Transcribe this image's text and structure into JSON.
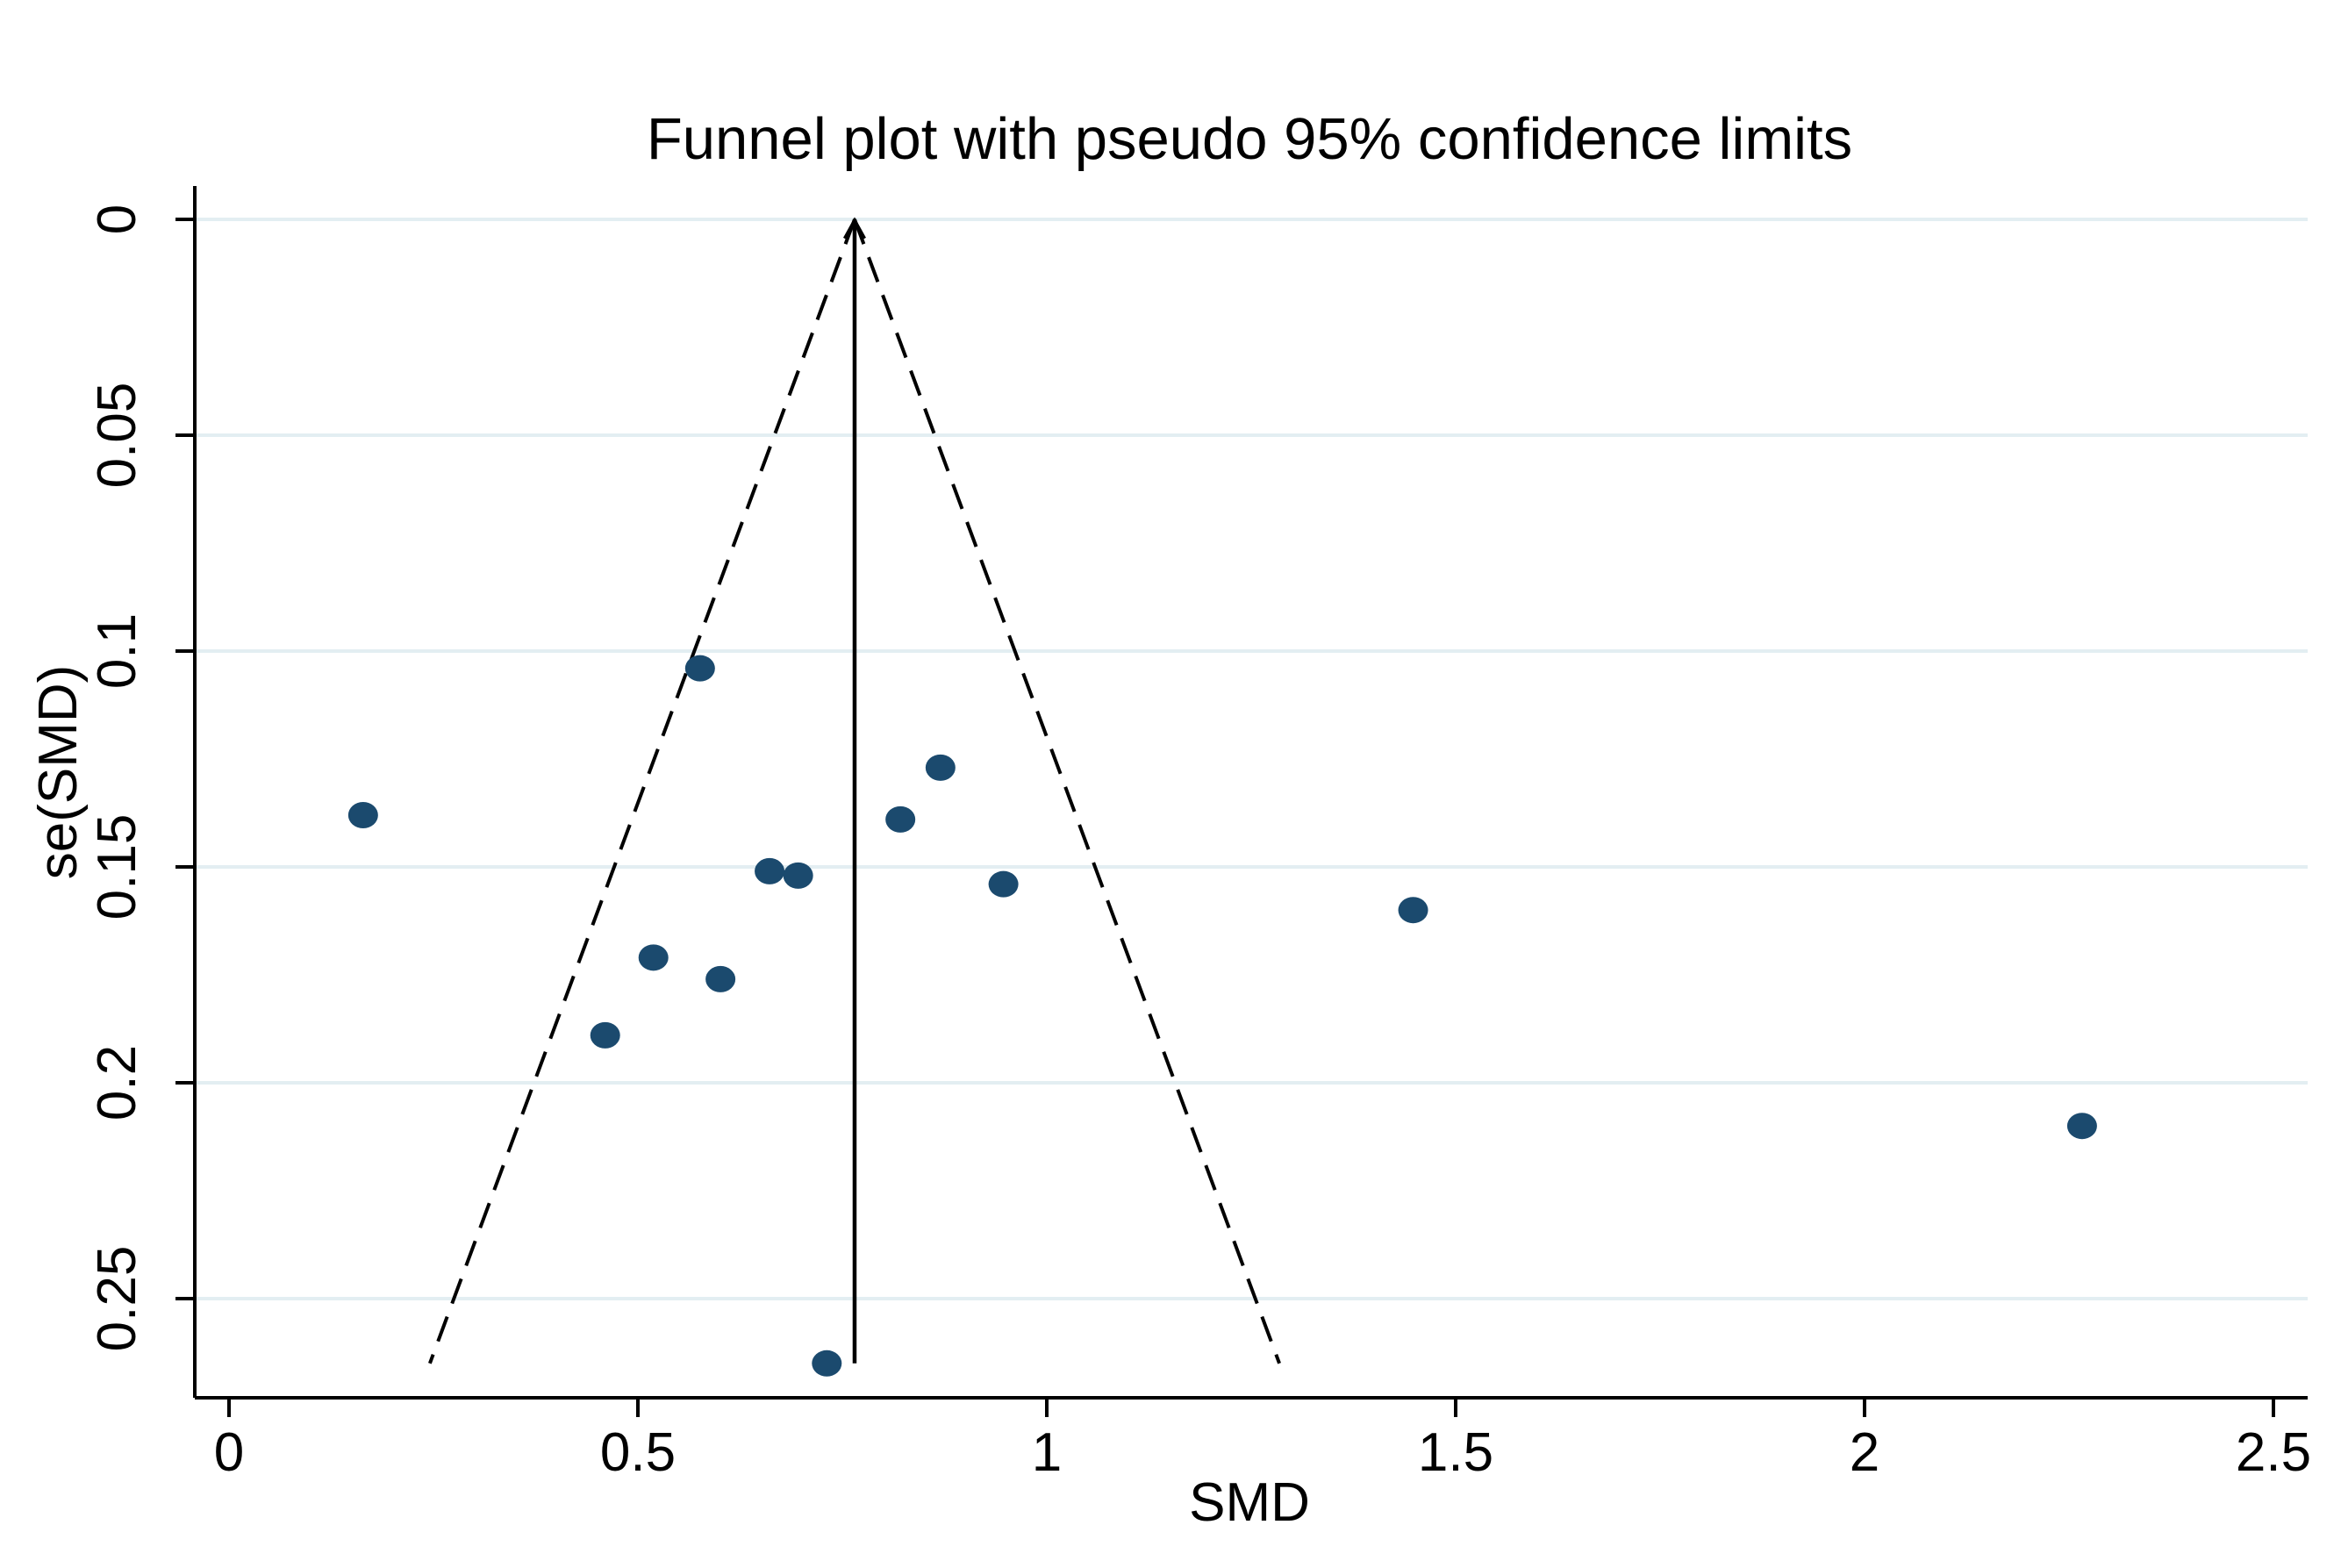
{
  "chart_data": {
    "type": "scatter",
    "title": "Funnel plot with pseudo 95% confidence limits",
    "xlabel": "SMD",
    "ylabel": "se(SMD)",
    "xlim": [
      -0.04,
      2.55
    ],
    "ylim": [
      0,
      0.272
    ],
    "y_reversed": true,
    "grid": true,
    "xticks": [
      {
        "value": 0,
        "label": "0"
      },
      {
        "value": 0.5,
        "label": "0.5"
      },
      {
        "value": 1,
        "label": "1"
      },
      {
        "value": 1.5,
        "label": "1.5"
      },
      {
        "value": 2,
        "label": "2"
      },
      {
        "value": 2.5,
        "label": "2.5"
      }
    ],
    "yticks": [
      {
        "value": 0,
        "label": "0"
      },
      {
        "value": 0.05,
        "label": "0.05"
      },
      {
        "value": 0.1,
        "label": "0.1"
      },
      {
        "value": 0.15,
        "label": "0.15"
      },
      {
        "value": 0.2,
        "label": "0.2"
      },
      {
        "value": 0.25,
        "label": "0.25"
      }
    ],
    "pooled_effect": 0.765,
    "se_max": 0.265,
    "confidence_limit_z": 1.96,
    "points": [
      {
        "x": 0.164,
        "y": 0.138
      },
      {
        "x": 0.576,
        "y": 0.104
      },
      {
        "x": 0.87,
        "y": 0.127
      },
      {
        "x": 0.821,
        "y": 0.139
      },
      {
        "x": 0.661,
        "y": 0.151
      },
      {
        "x": 0.696,
        "y": 0.152
      },
      {
        "x": 0.947,
        "y": 0.154
      },
      {
        "x": 1.448,
        "y": 0.16
      },
      {
        "x": 0.519,
        "y": 0.171
      },
      {
        "x": 0.601,
        "y": 0.176
      },
      {
        "x": 0.46,
        "y": 0.189
      },
      {
        "x": 2.266,
        "y": 0.21
      },
      {
        "x": 0.731,
        "y": 0.265
      }
    ],
    "colors": {
      "marker": "#1b4a6e",
      "grid": "#e3eef2",
      "axis": "#000000",
      "line": "#000000"
    }
  }
}
